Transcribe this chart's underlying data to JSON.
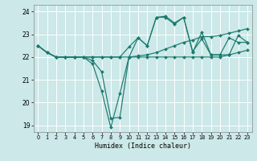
{
  "xlabel": "Humidex (Indice chaleur)",
  "bg_color": "#cce8e8",
  "line_color": "#1a7a6e",
  "grid_color": "#ffffff",
  "xlim": [
    -0.5,
    23.5
  ],
  "ylim": [
    18.7,
    24.3
  ],
  "yticks": [
    19,
    20,
    21,
    22,
    23,
    24
  ],
  "xticks": [
    0,
    1,
    2,
    3,
    4,
    5,
    6,
    7,
    8,
    9,
    10,
    11,
    12,
    13,
    14,
    15,
    16,
    17,
    18,
    19,
    20,
    21,
    22,
    23
  ],
  "series": [
    [
      22.5,
      22.2,
      22.0,
      22.0,
      22.0,
      22.0,
      21.7,
      20.5,
      18.9,
      20.4,
      22.0,
      22.85,
      22.5,
      23.75,
      23.8,
      23.5,
      23.75,
      22.25,
      22.8,
      22.1,
      22.1,
      22.85,
      22.65,
      22.65
    ],
    [
      22.5,
      22.2,
      22.0,
      22.0,
      22.0,
      22.0,
      21.85,
      21.35,
      19.3,
      19.35,
      22.0,
      22.0,
      22.0,
      22.0,
      22.0,
      22.0,
      22.0,
      22.0,
      22.0,
      22.0,
      22.0,
      22.1,
      22.2,
      22.3
    ],
    [
      22.5,
      22.2,
      22.0,
      22.0,
      22.0,
      22.0,
      22.0,
      22.0,
      22.0,
      22.0,
      22.0,
      22.05,
      22.1,
      22.2,
      22.35,
      22.5,
      22.65,
      22.75,
      22.9,
      22.9,
      22.95,
      23.05,
      23.15,
      23.25
    ],
    [
      22.5,
      22.2,
      22.0,
      22.0,
      22.0,
      22.0,
      22.0,
      22.0,
      22.0,
      22.0,
      22.45,
      22.85,
      22.5,
      23.75,
      23.75,
      23.45,
      23.75,
      22.2,
      23.1,
      22.1,
      22.1,
      22.1,
      22.95,
      22.65
    ]
  ]
}
